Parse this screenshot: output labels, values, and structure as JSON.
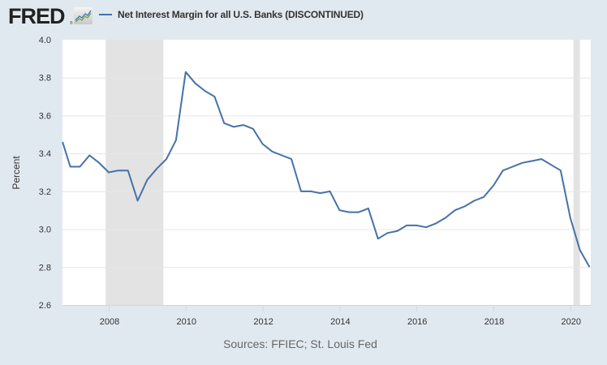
{
  "header": {
    "logo_text": "FRED",
    "logo_tm": "®",
    "legend_label": "Net Interest Margin for all U.S. Banks (DISCONTINUED)",
    "legend_color": "#4572a7"
  },
  "footer": {
    "source": "Sources: FFIEC; St. Louis Fed"
  },
  "colors": {
    "background": "#e1e9f0",
    "plot_background": "#ffffff",
    "line": "#4572a7",
    "gridline": "#e6e6e6",
    "recession": "#e3e3e3"
  },
  "chart_data": {
    "type": "line",
    "title": "Net Interest Margin for all U.S. Banks (DISCONTINUED)",
    "xlabel": "",
    "ylabel": "Percent",
    "ylim": [
      2.6,
      4.0
    ],
    "xlim": [
      2006.8,
      2020.5
    ],
    "yticks": [
      "4.0",
      "3.8",
      "3.6",
      "3.4",
      "3.2",
      "3.0",
      "2.8",
      "2.6"
    ],
    "xticks": [
      "2008",
      "2010",
      "2012",
      "2014",
      "2016",
      "2018",
      "2020"
    ],
    "grid": true,
    "legend_position": "top",
    "recessions": [
      {
        "start": 2007.92,
        "end": 2009.42
      },
      {
        "start": 2020.08,
        "end": 2020.25
      }
    ],
    "series": [
      {
        "name": "Net Interest Margin for all U.S. Banks (DISCONTINUED)",
        "x": [
          2006.8,
          2007.0,
          2007.25,
          2007.5,
          2007.75,
          2008.0,
          2008.25,
          2008.5,
          2008.75,
          2009.0,
          2009.25,
          2009.5,
          2009.75,
          2010.0,
          2010.25,
          2010.5,
          2010.75,
          2011.0,
          2011.25,
          2011.5,
          2011.75,
          2012.0,
          2012.25,
          2012.5,
          2012.75,
          2013.0,
          2013.25,
          2013.5,
          2013.75,
          2014.0,
          2014.25,
          2014.5,
          2014.75,
          2015.0,
          2015.25,
          2015.5,
          2015.75,
          2016.0,
          2016.25,
          2016.5,
          2016.75,
          2017.0,
          2017.25,
          2017.5,
          2017.75,
          2018.0,
          2018.25,
          2018.5,
          2018.75,
          2019.0,
          2019.25,
          2019.5,
          2019.75,
          2020.0,
          2020.25,
          2020.5
        ],
        "values": [
          3.46,
          3.33,
          3.33,
          3.39,
          3.35,
          3.3,
          3.31,
          3.31,
          3.15,
          3.26,
          3.32,
          3.37,
          3.47,
          3.83,
          3.77,
          3.73,
          3.7,
          3.56,
          3.54,
          3.55,
          3.53,
          3.45,
          3.41,
          3.39,
          3.37,
          3.2,
          3.2,
          3.19,
          3.2,
          3.1,
          3.09,
          3.09,
          3.11,
          2.95,
          2.98,
          2.99,
          3.02,
          3.02,
          3.01,
          3.03,
          3.06,
          3.1,
          3.12,
          3.15,
          3.17,
          3.23,
          3.31,
          3.33,
          3.35,
          3.36,
          3.37,
          3.34,
          3.31,
          3.06,
          2.89,
          2.8
        ]
      }
    ]
  }
}
